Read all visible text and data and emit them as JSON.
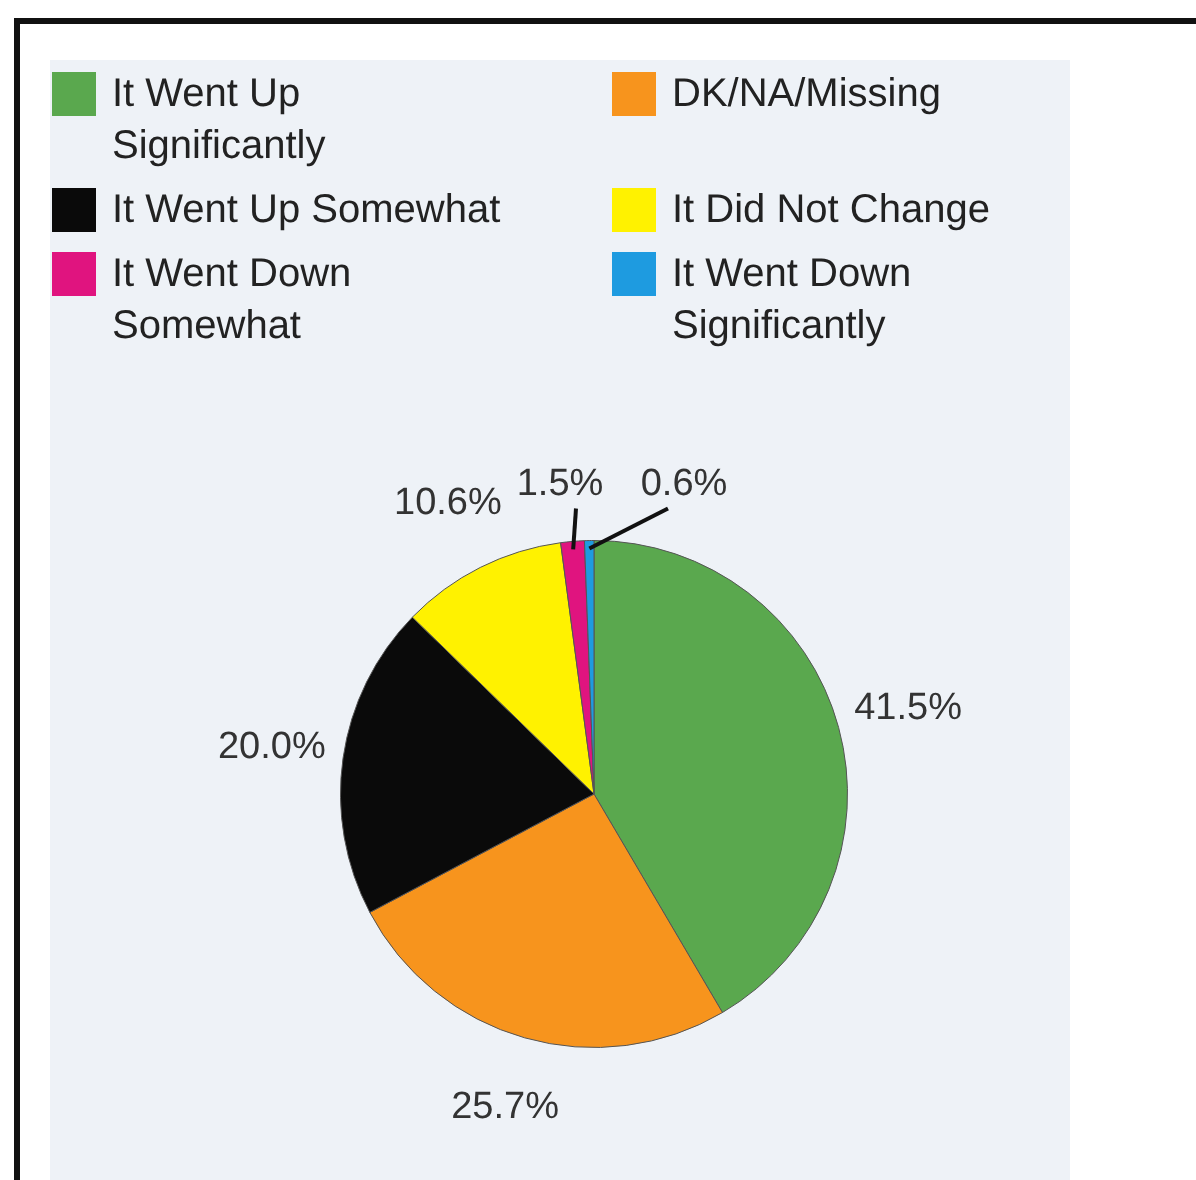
{
  "chart_data": {
    "type": "pie",
    "categories": [
      "It Went Up Significantly",
      "DK/NA/Missing",
      "It Went Up Somewhat",
      "It Did Not Change",
      "It Went Down Somewhat",
      "It Went Down Significantly"
    ],
    "values": [
      41.5,
      25.7,
      20.0,
      10.6,
      1.5,
      0.6
    ],
    "colors": [
      "#5aa84e",
      "#f7941d",
      "#0a0a0a",
      "#fff200",
      "#e0147f",
      "#1e9be0"
    ],
    "value_labels": [
      "41.5%",
      "25.7%",
      "20.0%",
      "10.6%",
      "1.5%",
      "0.6%"
    ],
    "legend": "top"
  }
}
